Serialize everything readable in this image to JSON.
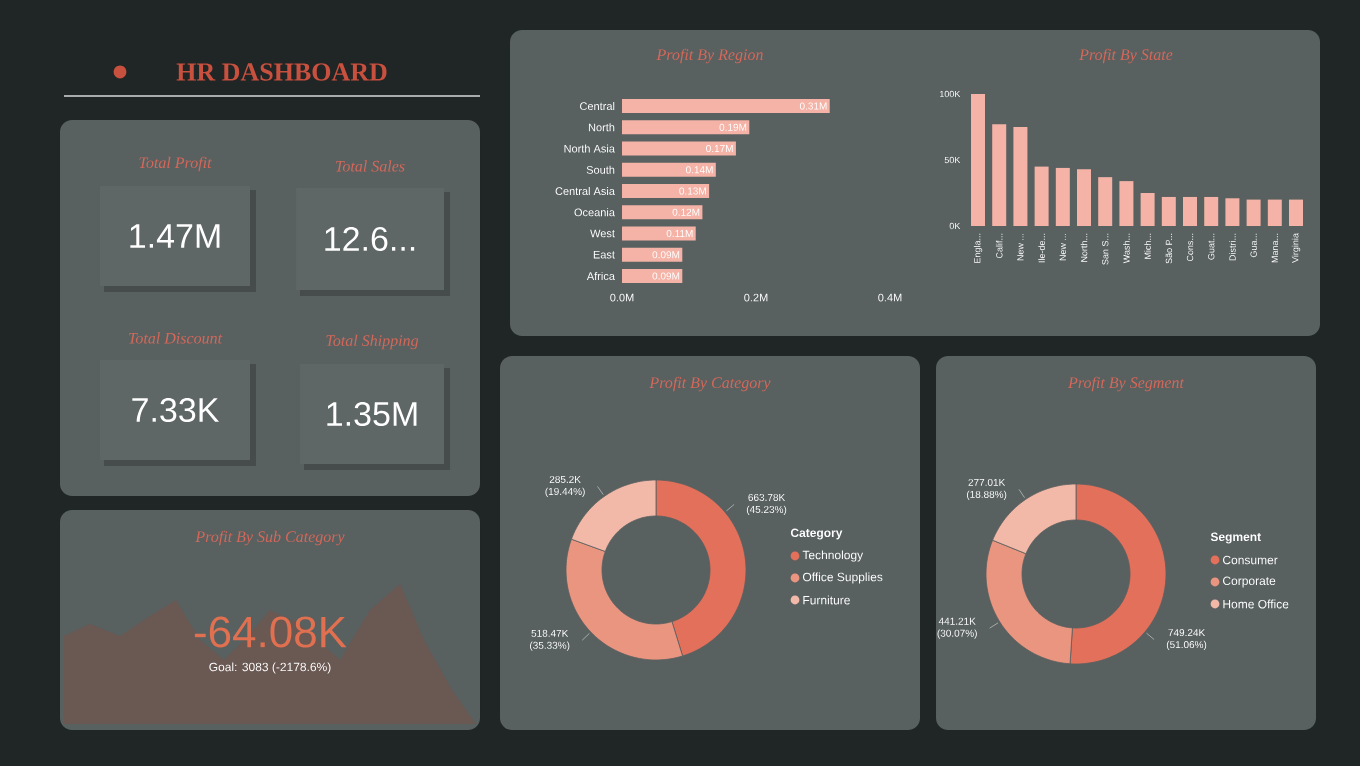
{
  "chart_data": [
    {
      "type": "other",
      "title": "HR DASHBOARD",
      "annotations": [
        "Total Profit",
        "1.47M",
        "Total Sales",
        "12.6...",
        "Total Discount",
        "7.33K",
        "Total Shipping",
        "1.35M"
      ]
    },
    {
      "type": "bar",
      "orientation": "horizontal",
      "title": "Profit By Region",
      "categories": [
        "Central",
        "North",
        "North Asia",
        "South",
        "Central Asia",
        "Oceania",
        "West",
        "East",
        "Africa"
      ],
      "values": [
        0.31,
        0.19,
        0.17,
        0.14,
        0.13,
        0.12,
        0.11,
        0.09,
        0.09
      ],
      "value_labels": [
        "0.31M",
        "0.19M",
        "0.17M",
        "0.14M",
        "0.13M",
        "0.12M",
        "0.11M",
        "0.09M",
        "0.09M"
      ],
      "color": "#f4b3a6",
      "xlim": [
        0,
        0.4
      ],
      "xticks": [
        {
          "value": 0,
          "label": "0.0M"
        },
        {
          "value": 0.2,
          "label": "0.2M"
        },
        {
          "value": 0.4,
          "label": "0.4M"
        }
      ]
    },
    {
      "type": "bar",
      "title": "Profit By State",
      "categories": [
        "Engla...",
        "Calif...",
        "New ...",
        "Ile-de...",
        "New ...",
        "North...",
        "San S...",
        "Wash...",
        "Mich...",
        "São P...",
        "Cons...",
        "Guat...",
        "Distri...",
        "Gua...",
        "Mana...",
        "Virginia"
      ],
      "values": [
        100,
        77,
        75,
        45,
        44,
        43,
        37,
        34,
        25,
        22,
        22,
        22,
        21,
        20,
        20,
        20
      ],
      "color": "#f4b3a6",
      "ylim": [
        0,
        105
      ],
      "yticks": [
        {
          "value": 0,
          "label": "0K"
        },
        {
          "value": 50,
          "label": "50K"
        },
        {
          "value": 100,
          "label": "100K"
        }
      ]
    },
    {
      "type": "donut",
      "title": "Profit By Category",
      "legend_title": "Category",
      "legend": "right",
      "categories": [
        "Technology",
        "Office Supplies",
        "Furniture"
      ],
      "values": [
        45.23,
        35.33,
        19.44
      ],
      "value_labels": [
        "663.78K (45.23%)",
        "518.47K (35.33%)",
        "285.2K (19.44%)"
      ],
      "colors": [
        "#e2705a",
        "#ea9580",
        "#f2b8a8"
      ]
    },
    {
      "type": "donut",
      "title": "Profit By Segment",
      "legend_title": "Segment",
      "legend": "right",
      "categories": [
        "Consumer",
        "Corporate",
        "Home Office"
      ],
      "values": [
        51.06,
        30.07,
        18.88
      ],
      "value_labels": [
        "749.24K (51.06%)",
        "441.21K (30.07%)",
        "277.01K (18.88%)"
      ],
      "colors": [
        "#e2705a",
        "#ea9580",
        "#f2b8a8"
      ]
    },
    {
      "type": "other",
      "title": "Profit By Sub Category",
      "annotations": [
        "-64.08K",
        "Goal: 3083 (-2178.6%)"
      ]
    }
  ]
}
